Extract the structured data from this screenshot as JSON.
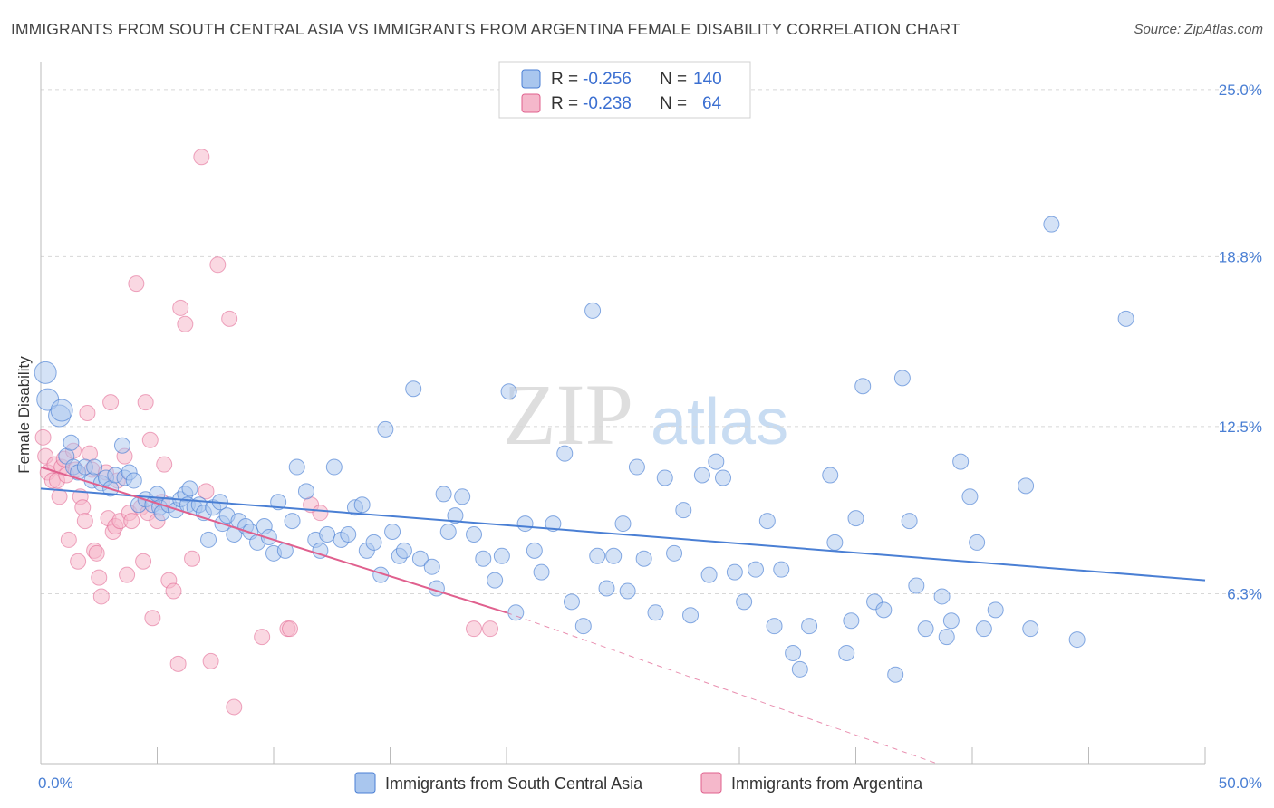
{
  "title": "IMMIGRANTS FROM SOUTH CENTRAL ASIA VS IMMIGRANTS FROM ARGENTINA FEMALE DISABILITY CORRELATION CHART",
  "source": "Source: ZipAtlas.com",
  "watermark": {
    "zip": "ZIP",
    "atlas": "atlas"
  },
  "colors": {
    "blue": "#4a7fd4",
    "blue_fill": "#a9c6ee",
    "pink": "#e0608e",
    "pink_fill": "#f5b8cb",
    "grid": "#d8d8d8"
  },
  "legend": {
    "r_label": "R =",
    "n_label": "N =",
    "rows": [
      {
        "series": "Immigrants from South Central Asia",
        "r": "-0.256",
        "n": "140"
      },
      {
        "series": "Immigrants from Argentina",
        "r": "-0.238",
        "n": "64"
      }
    ]
  },
  "chart_data": {
    "type": "scatter",
    "title": "IMMIGRANTS FROM SOUTH CENTRAL ASIA VS IMMIGRANTS FROM ARGENTINA FEMALE DISABILITY CORRELATION CHART",
    "xlabel": "",
    "ylabel": "Female Disability",
    "xlim": [
      0,
      50
    ],
    "ylim": [
      0,
      25.8
    ],
    "x_tick_labels": [
      "0.0%",
      "50.0%"
    ],
    "y_ticks": [
      6.3,
      12.5,
      18.8,
      25.0
    ],
    "y_tick_labels": [
      "6.3%",
      "12.5%",
      "18.8%",
      "25.0%"
    ],
    "grid": "horizontal dashed",
    "legend_position": "top-center",
    "series": [
      {
        "name": "Immigrants from South Central Asia",
        "color": "#4a7fd4",
        "trend": {
          "x0": 0,
          "y0": 10.2,
          "x1": 50,
          "y1": 6.8
        },
        "points": [
          [
            0.2,
            14.5
          ],
          [
            0.3,
            13.5
          ],
          [
            0.8,
            12.9
          ],
          [
            0.9,
            13.1
          ],
          [
            1.1,
            11.4
          ],
          [
            1.3,
            11.9
          ],
          [
            1.4,
            11.0
          ],
          [
            1.6,
            10.8
          ],
          [
            1.9,
            11.0
          ],
          [
            2.2,
            10.5
          ],
          [
            2.3,
            11.0
          ],
          [
            2.6,
            10.4
          ],
          [
            2.8,
            10.6
          ],
          [
            3.0,
            10.2
          ],
          [
            3.2,
            10.7
          ],
          [
            3.5,
            11.8
          ],
          [
            3.6,
            10.6
          ],
          [
            3.8,
            10.8
          ],
          [
            4.0,
            10.5
          ],
          [
            4.2,
            9.6
          ],
          [
            4.5,
            9.8
          ],
          [
            4.8,
            9.6
          ],
          [
            5.0,
            10.0
          ],
          [
            5.1,
            9.5
          ],
          [
            5.2,
            9.3
          ],
          [
            5.5,
            9.6
          ],
          [
            5.8,
            9.4
          ],
          [
            6.0,
            9.8
          ],
          [
            6.2,
            10.0
          ],
          [
            6.3,
            9.6
          ],
          [
            6.4,
            10.2
          ],
          [
            6.6,
            9.5
          ],
          [
            6.8,
            9.6
          ],
          [
            7.0,
            9.3
          ],
          [
            7.2,
            8.3
          ],
          [
            7.4,
            9.5
          ],
          [
            7.7,
            9.7
          ],
          [
            7.8,
            8.9
          ],
          [
            8.0,
            9.2
          ],
          [
            8.3,
            8.5
          ],
          [
            8.5,
            9.0
          ],
          [
            8.8,
            8.8
          ],
          [
            9.0,
            8.6
          ],
          [
            9.3,
            8.2
          ],
          [
            9.6,
            8.8
          ],
          [
            9.8,
            8.4
          ],
          [
            10.0,
            7.8
          ],
          [
            10.2,
            9.7
          ],
          [
            10.5,
            7.9
          ],
          [
            10.8,
            9.0
          ],
          [
            11.0,
            11.0
          ],
          [
            11.4,
            10.1
          ],
          [
            11.8,
            8.3
          ],
          [
            12.0,
            7.9
          ],
          [
            12.3,
            8.5
          ],
          [
            12.6,
            11.0
          ],
          [
            12.9,
            8.3
          ],
          [
            13.2,
            8.5
          ],
          [
            13.5,
            9.5
          ],
          [
            13.8,
            9.6
          ],
          [
            14.0,
            7.9
          ],
          [
            14.3,
            8.2
          ],
          [
            14.6,
            7.0
          ],
          [
            14.8,
            12.4
          ],
          [
            15.1,
            8.6
          ],
          [
            15.4,
            7.7
          ],
          [
            15.6,
            7.9
          ],
          [
            16.0,
            13.9
          ],
          [
            16.3,
            7.6
          ],
          [
            16.8,
            7.3
          ],
          [
            17.0,
            6.5
          ],
          [
            17.3,
            10.0
          ],
          [
            17.5,
            8.6
          ],
          [
            17.8,
            9.2
          ],
          [
            18.1,
            9.9
          ],
          [
            18.6,
            8.5
          ],
          [
            19.0,
            7.6
          ],
          [
            19.5,
            6.8
          ],
          [
            19.8,
            7.7
          ],
          [
            20.1,
            13.8
          ],
          [
            20.4,
            5.6
          ],
          [
            20.8,
            8.9
          ],
          [
            21.2,
            7.9
          ],
          [
            21.5,
            7.1
          ],
          [
            22.0,
            8.9
          ],
          [
            22.5,
            11.5
          ],
          [
            22.8,
            6.0
          ],
          [
            23.3,
            5.1
          ],
          [
            23.7,
            16.8
          ],
          [
            23.9,
            7.7
          ],
          [
            24.3,
            6.5
          ],
          [
            24.6,
            7.7
          ],
          [
            25.0,
            8.9
          ],
          [
            25.2,
            6.4
          ],
          [
            25.6,
            11.0
          ],
          [
            25.9,
            7.6
          ],
          [
            26.4,
            5.6
          ],
          [
            26.8,
            10.6
          ],
          [
            27.2,
            7.8
          ],
          [
            27.6,
            9.4
          ],
          [
            27.9,
            5.5
          ],
          [
            28.4,
            10.7
          ],
          [
            28.7,
            7.0
          ],
          [
            29.0,
            11.2
          ],
          [
            29.3,
            10.6
          ],
          [
            29.8,
            7.1
          ],
          [
            30.2,
            6.0
          ],
          [
            30.7,
            7.2
          ],
          [
            31.2,
            9.0
          ],
          [
            31.5,
            5.1
          ],
          [
            31.8,
            7.2
          ],
          [
            32.3,
            4.1
          ],
          [
            32.6,
            3.5
          ],
          [
            33.0,
            5.1
          ],
          [
            33.9,
            10.7
          ],
          [
            34.1,
            8.2
          ],
          [
            34.6,
            4.1
          ],
          [
            34.8,
            5.3
          ],
          [
            35.0,
            9.1
          ],
          [
            35.3,
            14.0
          ],
          [
            35.8,
            6.0
          ],
          [
            36.2,
            5.7
          ],
          [
            36.7,
            3.3
          ],
          [
            37.0,
            14.3
          ],
          [
            37.3,
            9.0
          ],
          [
            37.6,
            6.6
          ],
          [
            38.0,
            5.0
          ],
          [
            38.7,
            6.2
          ],
          [
            38.9,
            4.7
          ],
          [
            39.1,
            5.3
          ],
          [
            39.5,
            11.2
          ],
          [
            39.9,
            9.9
          ],
          [
            40.2,
            8.2
          ],
          [
            40.5,
            5.0
          ],
          [
            41.0,
            5.7
          ],
          [
            42.3,
            10.3
          ],
          [
            42.5,
            5.0
          ],
          [
            43.4,
            20.0
          ],
          [
            44.5,
            4.6
          ],
          [
            46.6,
            16.5
          ]
        ]
      },
      {
        "name": "Immigrants from Argentina",
        "color": "#e0608e",
        "trend": {
          "x0": 0,
          "y0": 11.0,
          "x1": 20,
          "y1": 5.6
        },
        "trend_extension": {
          "x0": 20,
          "y0": 5.6,
          "x1": 38.5,
          "y1": 0.0
        },
        "points": [
          [
            0.1,
            12.1
          ],
          [
            0.2,
            11.4
          ],
          [
            0.3,
            10.8
          ],
          [
            0.5,
            10.5
          ],
          [
            0.6,
            11.1
          ],
          [
            0.7,
            10.5
          ],
          [
            0.8,
            9.9
          ],
          [
            0.9,
            11.0
          ],
          [
            1.0,
            11.3
          ],
          [
            1.1,
            10.7
          ],
          [
            1.2,
            8.3
          ],
          [
            1.4,
            11.6
          ],
          [
            1.5,
            10.9
          ],
          [
            1.6,
            7.5
          ],
          [
            1.7,
            9.9
          ],
          [
            1.8,
            9.5
          ],
          [
            1.9,
            9.0
          ],
          [
            2.0,
            13.0
          ],
          [
            2.1,
            11.5
          ],
          [
            2.2,
            10.9
          ],
          [
            2.3,
            7.9
          ],
          [
            2.4,
            7.8
          ],
          [
            2.5,
            6.9
          ],
          [
            2.6,
            6.2
          ],
          [
            2.8,
            10.8
          ],
          [
            2.9,
            9.1
          ],
          [
            3.0,
            13.4
          ],
          [
            3.1,
            8.6
          ],
          [
            3.2,
            8.8
          ],
          [
            3.3,
            10.5
          ],
          [
            3.4,
            9.0
          ],
          [
            3.6,
            11.4
          ],
          [
            3.7,
            7.0
          ],
          [
            3.8,
            9.3
          ],
          [
            3.9,
            9.0
          ],
          [
            4.1,
            17.8
          ],
          [
            4.3,
            9.5
          ],
          [
            4.4,
            7.5
          ],
          [
            4.5,
            13.4
          ],
          [
            4.6,
            9.3
          ],
          [
            4.7,
            12.0
          ],
          [
            4.8,
            5.4
          ],
          [
            5.0,
            9.0
          ],
          [
            5.2,
            9.7
          ],
          [
            5.3,
            11.1
          ],
          [
            5.5,
            6.8
          ],
          [
            5.7,
            6.4
          ],
          [
            5.9,
            3.7
          ],
          [
            6.0,
            16.9
          ],
          [
            6.2,
            16.3
          ],
          [
            6.5,
            7.6
          ],
          [
            6.9,
            22.5
          ],
          [
            7.1,
            10.1
          ],
          [
            7.3,
            3.8
          ],
          [
            7.6,
            18.5
          ],
          [
            8.1,
            16.5
          ],
          [
            8.3,
            2.1
          ],
          [
            9.5,
            4.7
          ],
          [
            10.6,
            5.0
          ],
          [
            10.7,
            5.0
          ],
          [
            11.6,
            9.6
          ],
          [
            12.0,
            9.3
          ],
          [
            18.6,
            5.0
          ],
          [
            19.3,
            5.0
          ]
        ]
      }
    ]
  },
  "bottom_legend": [
    "Immigrants from South Central Asia",
    "Immigrants from Argentina"
  ]
}
